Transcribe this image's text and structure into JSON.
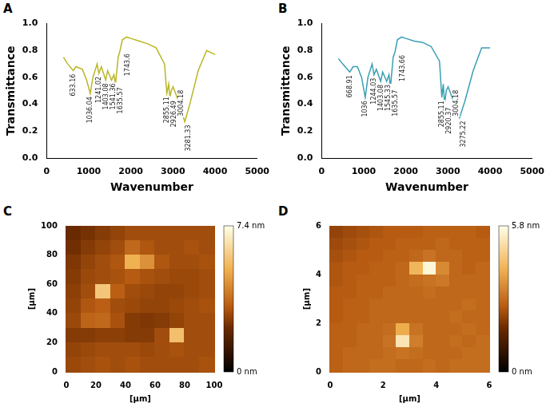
{
  "chart_data": [
    {
      "panel": "A",
      "type": "line",
      "x_label": "Wavenumber",
      "y_label": "Transmittance",
      "xlim": [
        0,
        5000
      ],
      "xticks": [
        0,
        1000,
        2000,
        3000,
        4000,
        5000
      ],
      "ylim": [
        0,
        1
      ],
      "yticks": [
        {
          "value": 0,
          "label": "0.0"
        },
        {
          "value": 0.2,
          "label": "0.2"
        },
        {
          "value": 0.4,
          "label": "0.4"
        },
        {
          "value": 0.6,
          "label": "0.6"
        },
        {
          "value": 0.8,
          "label": "0.8"
        },
        {
          "value": 1,
          "label": "1.0"
        }
      ],
      "grid": false,
      "x": [
        400,
        500,
        633.16,
        700,
        850,
        950,
        1036.04,
        1100,
        1200,
        1241.02,
        1300,
        1403.08,
        1450,
        1541.36,
        1600,
        1635.57,
        1700,
        1743.6,
        1800,
        1900,
        2000,
        2200,
        2400,
        2600,
        2800,
        2855.11,
        2900,
        2926.49,
        2960,
        3004.18,
        3100,
        3281.33,
        3400,
        3600,
        3800,
        4000
      ],
      "series": [
        {
          "color": "#b9b626",
          "values": [
            0.75,
            0.7,
            0.65,
            0.68,
            0.66,
            0.58,
            0.48,
            0.6,
            0.7,
            0.63,
            0.68,
            0.58,
            0.65,
            0.58,
            0.62,
            0.55,
            0.75,
            0.8,
            0.88,
            0.9,
            0.89,
            0.87,
            0.85,
            0.82,
            0.7,
            0.48,
            0.55,
            0.45,
            0.5,
            0.53,
            0.45,
            0.27,
            0.4,
            0.65,
            0.8,
            0.77
          ]
        }
      ],
      "annotations": [
        {
          "x": 633.16,
          "y": 0.65,
          "text": "633.16"
        },
        {
          "x": 1036.04,
          "y": 0.48,
          "text": "1036.04"
        },
        {
          "x": 1241.02,
          "y": 0.63,
          "text": "1241.02"
        },
        {
          "x": 1403.08,
          "y": 0.58,
          "text": "1403.08"
        },
        {
          "x": 1541.36,
          "y": 0.58,
          "text": "1541.36"
        },
        {
          "x": 1635.57,
          "y": 0.55,
          "text": "1635.57"
        },
        {
          "x": 1743.6,
          "y": 0.8,
          "text": "1743.6"
        },
        {
          "x": 2855.11,
          "y": 0.48,
          "text": "2855.11"
        },
        {
          "x": 2926.49,
          "y": 0.45,
          "text": "2926.49"
        },
        {
          "x": 3004.18,
          "y": 0.53,
          "text": "3004.18"
        },
        {
          "x": 3281.33,
          "y": 0.27,
          "text": "3281.33"
        }
      ]
    },
    {
      "panel": "B",
      "type": "line",
      "x_label": "Wavenumber",
      "y_label": "Transmittance",
      "xlim": [
        0,
        5000
      ],
      "xticks": [
        0,
        1000,
        2000,
        3000,
        4000,
        5000
      ],
      "ylim": [
        0,
        1
      ],
      "yticks": [
        {
          "value": 0,
          "label": "0.0"
        },
        {
          "value": 0.2,
          "label": "0.2"
        },
        {
          "value": 0.4,
          "label": "0.4"
        },
        {
          "value": 0.6,
          "label": "0.6"
        },
        {
          "value": 0.8,
          "label": "0.8"
        },
        {
          "value": 1,
          "label": "1.0"
        }
      ],
      "grid": false,
      "x": [
        400,
        500,
        668.91,
        750,
        850,
        950,
        1036,
        1100,
        1200,
        1244.03,
        1300,
        1403.08,
        1450,
        1545.33,
        1600,
        1635.57,
        1700,
        1743.66,
        1800,
        1900,
        2000,
        2200,
        2400,
        2600,
        2800,
        2855.11,
        2890,
        2920.37,
        2960,
        3004.18,
        3100,
        3275.22,
        3400,
        3600,
        3800,
        4000
      ],
      "series": [
        {
          "color": "#3a9fb3",
          "values": [
            0.74,
            0.7,
            0.64,
            0.68,
            0.68,
            0.6,
            0.45,
            0.6,
            0.7,
            0.62,
            0.66,
            0.57,
            0.64,
            0.57,
            0.62,
            0.53,
            0.75,
            0.79,
            0.88,
            0.9,
            0.89,
            0.87,
            0.86,
            0.83,
            0.72,
            0.45,
            0.55,
            0.4,
            0.5,
            0.53,
            0.45,
            0.3,
            0.42,
            0.65,
            0.82,
            0.82
          ]
        }
      ],
      "annotations": [
        {
          "x": 668.91,
          "y": 0.64,
          "text": "668.91"
        },
        {
          "x": 1036,
          "y": 0.45,
          "text": "1036"
        },
        {
          "x": 1244.03,
          "y": 0.62,
          "text": "1244.03"
        },
        {
          "x": 1403.08,
          "y": 0.57,
          "text": "1403.08"
        },
        {
          "x": 1545.33,
          "y": 0.57,
          "text": "1545.33"
        },
        {
          "x": 1635.57,
          "y": 0.53,
          "text": "1635.57"
        },
        {
          "x": 1743.66,
          "y": 0.79,
          "text": "1743.66"
        },
        {
          "x": 2855.11,
          "y": 0.45,
          "text": "2855.11"
        },
        {
          "x": 2920.37,
          "y": 0.4,
          "text": "2920.37"
        },
        {
          "x": 3004.18,
          "y": 0.53,
          "text": "3004.18"
        },
        {
          "x": 3275.22,
          "y": 0.3,
          "text": "3275.22"
        }
      ]
    },
    {
      "panel": "C",
      "type": "heatmap",
      "x_label": "[µm]",
      "y_label": "[µm]",
      "xlim": [
        0,
        100
      ],
      "xticks": [
        0,
        20,
        40,
        60,
        80,
        100
      ],
      "ylim": [
        0,
        100
      ],
      "yticks": [
        0,
        20,
        40,
        60,
        80,
        100
      ],
      "grid": false,
      "colorbar": {
        "range": [
          0,
          7.4
        ],
        "ticks": [
          {
            "value": 0,
            "label": "0 nm"
          },
          {
            "value": 7.4,
            "label": "7.4 nm"
          }
        ]
      },
      "cells": [
        [
          2.2,
          2.4,
          2.6,
          2.8,
          3.0,
          3.0,
          3.0,
          3.0,
          3.0,
          3.0
        ],
        [
          2.3,
          2.6,
          2.8,
          3.0,
          3.6,
          3.2,
          3.0,
          3.0,
          3.1,
          3.0
        ],
        [
          2.5,
          2.8,
          3.0,
          3.2,
          5.2,
          4.5,
          3.2,
          3.0,
          3.0,
          3.1
        ],
        [
          2.6,
          2.9,
          3.0,
          3.1,
          3.3,
          3.1,
          3.0,
          2.9,
          2.9,
          3.0
        ],
        [
          2.7,
          3.0,
          5.8,
          3.4,
          3.0,
          2.9,
          2.8,
          2.8,
          2.9,
          3.0
        ],
        [
          2.8,
          3.2,
          3.4,
          3.0,
          2.9,
          2.8,
          2.8,
          2.9,
          3.0,
          3.1
        ],
        [
          2.9,
          3.5,
          3.6,
          3.1,
          2.6,
          2.5,
          2.6,
          2.8,
          3.0,
          3.0
        ],
        [
          2.6,
          2.6,
          2.7,
          2.7,
          2.6,
          2.6,
          3.0,
          5.6,
          3.0,
          3.0
        ],
        [
          2.8,
          2.9,
          3.0,
          3.0,
          3.0,
          2.9,
          3.0,
          3.1,
          3.0,
          3.0
        ],
        [
          2.9,
          3.0,
          3.1,
          3.0,
          3.1,
          3.0,
          3.0,
          3.0,
          3.0,
          3.1
        ]
      ]
    },
    {
      "panel": "D",
      "type": "heatmap",
      "x_label": "[µm]",
      "y_label": "[µm]",
      "xlim": [
        0,
        6
      ],
      "xticks": [
        0,
        2,
        4,
        6
      ],
      "ylim": [
        0,
        6
      ],
      "yticks": [
        0,
        2,
        4,
        6
      ],
      "grid": false,
      "colorbar": {
        "range": [
          0,
          5.8
        ],
        "ticks": [
          {
            "value": 0,
            "label": "0 nm"
          },
          {
            "value": 5.8,
            "label": "5.8 nm"
          }
        ]
      },
      "cells": [
        [
          2.2,
          2.3,
          2.4,
          2.5,
          2.6,
          2.6,
          2.6,
          2.7,
          2.7,
          2.7,
          2.7,
          2.6
        ],
        [
          2.3,
          2.4,
          2.5,
          2.6,
          2.6,
          2.7,
          2.7,
          2.7,
          2.8,
          2.7,
          2.7,
          2.7
        ],
        [
          2.4,
          2.5,
          2.6,
          2.6,
          2.7,
          2.7,
          2.8,
          3.0,
          2.8,
          2.8,
          2.7,
          2.7
        ],
        [
          2.5,
          2.6,
          2.6,
          2.7,
          2.7,
          2.8,
          4.2,
          5.6,
          3.4,
          2.8,
          2.7,
          2.8
        ],
        [
          2.5,
          2.6,
          2.7,
          2.7,
          2.7,
          2.8,
          2.9,
          3.0,
          3.1,
          2.8,
          2.8,
          2.8
        ],
        [
          2.6,
          2.6,
          2.7,
          2.7,
          2.8,
          2.8,
          2.8,
          2.9,
          2.8,
          2.8,
          2.8,
          2.8
        ],
        [
          2.6,
          2.7,
          2.7,
          2.8,
          2.8,
          2.8,
          2.8,
          2.8,
          2.8,
          2.8,
          2.9,
          2.8
        ],
        [
          2.6,
          2.7,
          2.7,
          2.8,
          2.8,
          2.8,
          2.8,
          2.8,
          2.8,
          2.9,
          2.8,
          2.8
        ],
        [
          2.7,
          2.7,
          2.8,
          2.8,
          2.9,
          4.0,
          3.0,
          2.8,
          2.8,
          2.8,
          2.9,
          2.8
        ],
        [
          2.7,
          2.7,
          2.8,
          2.8,
          3.0,
          5.2,
          3.2,
          2.8,
          2.8,
          2.9,
          2.8,
          2.9
        ],
        [
          2.7,
          2.8,
          2.8,
          2.8,
          2.9,
          3.0,
          2.9,
          2.8,
          2.8,
          2.8,
          2.9,
          2.9
        ],
        [
          2.7,
          2.8,
          2.8,
          2.9,
          2.9,
          2.8,
          2.8,
          2.9,
          2.8,
          2.9,
          2.9,
          2.9
        ]
      ]
    }
  ]
}
